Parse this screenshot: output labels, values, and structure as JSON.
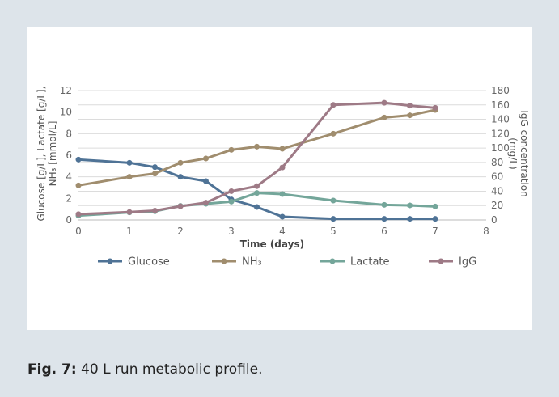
{
  "caption": {
    "prefix": "Fig. 7:",
    "text": " 40 L run metabolic profile."
  },
  "chart_data": {
    "type": "line",
    "xlabel": "Time (days)",
    "ylabel_left": "Glucose [g/L], Lactate [g/L], NH₃ [mmol/L]",
    "ylabel_left_line1": "Glucose [g/L], Lactate [g/L],",
    "ylabel_left_line2": "NH₃ [mmol/L]",
    "ylabel_right": "IgG concentration (mg/L)",
    "ylabel_right_line1": "IgG concentration",
    "ylabel_right_line2": "(mg/L)",
    "xlim": [
      0,
      8
    ],
    "xticks": [
      "0",
      "1",
      "2",
      "3",
      "4",
      "5",
      "6",
      "7",
      "8"
    ],
    "ylim_left": [
      0,
      12
    ],
    "yticks_left": [
      "0",
      "2",
      "4",
      "6",
      "8",
      "10",
      "12"
    ],
    "ylim_right": [
      0,
      180
    ],
    "yticks_right": [
      "0",
      "20",
      "40",
      "60",
      "80",
      "100",
      "120",
      "140",
      "160",
      "180"
    ],
    "grid": true,
    "legend_position": "bottom",
    "series": [
      {
        "name": "Glucose",
        "axis": "left",
        "color": "#4f7396",
        "x": [
          0,
          1,
          1.5,
          2,
          2.5,
          3,
          3.5,
          4,
          5,
          6,
          6.5,
          7
        ],
        "y": [
          5.6,
          5.3,
          4.9,
          4.0,
          3.6,
          1.9,
          1.2,
          0.3,
          0.1,
          0.1,
          0.1,
          0.1
        ]
      },
      {
        "name": "NH₃",
        "axis": "left",
        "color": "#a08d6e",
        "x": [
          0,
          1,
          1.5,
          2,
          2.5,
          3,
          3.5,
          4,
          5,
          6,
          6.5,
          7
        ],
        "y": [
          3.2,
          4.0,
          4.3,
          5.3,
          5.7,
          6.5,
          6.8,
          6.6,
          8.0,
          9.5,
          9.7,
          10.2
        ]
      },
      {
        "name": "Lactate",
        "axis": "left",
        "color": "#74a69a",
        "x": [
          0,
          1,
          1.5,
          2,
          2.5,
          3,
          3.5,
          4,
          5,
          6,
          6.5,
          7
        ],
        "y": [
          0.4,
          0.7,
          0.8,
          1.3,
          1.5,
          1.7,
          2.5,
          2.4,
          1.8,
          1.4,
          1.35,
          1.25
        ]
      },
      {
        "name": "IgG",
        "axis": "right",
        "color": "#9e7a86",
        "x": [
          0,
          1,
          1.5,
          2,
          2.5,
          3,
          3.5,
          4,
          5,
          6,
          6.5,
          7
        ],
        "y": [
          8,
          11,
          13,
          19,
          24,
          40,
          47,
          73,
          160,
          163,
          159,
          156
        ]
      }
    ]
  }
}
